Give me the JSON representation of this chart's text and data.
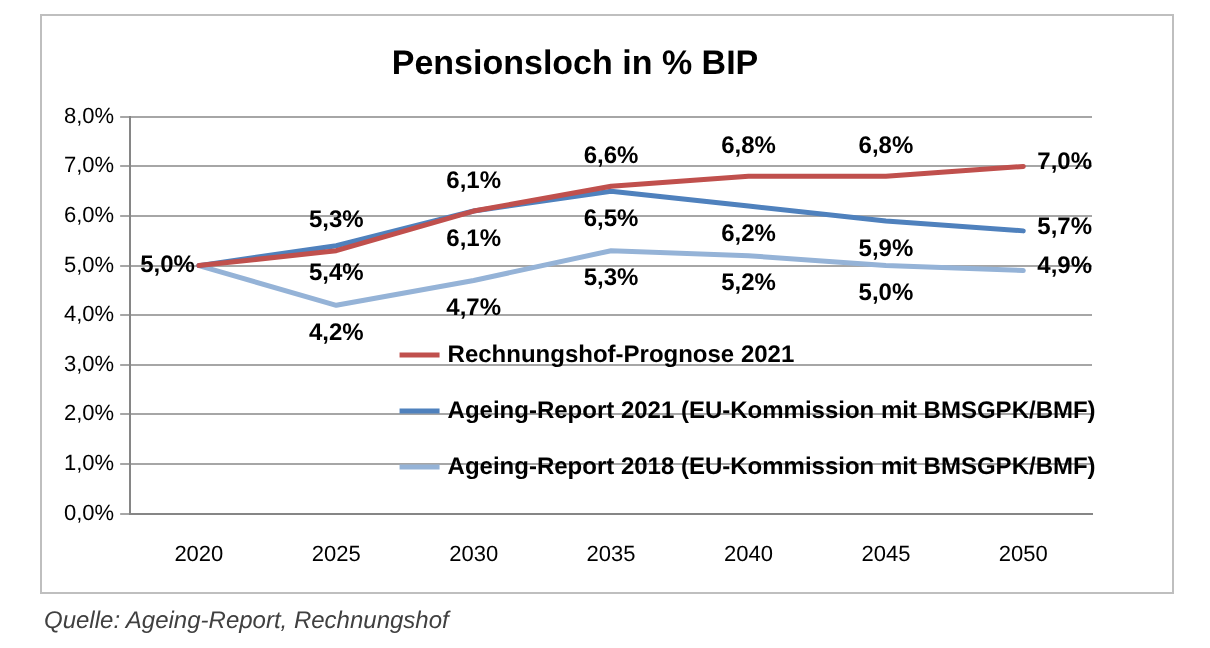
{
  "chart_data": {
    "type": "line",
    "title": "Pensionsloch in % BIP",
    "categories": [
      "2020",
      "2025",
      "2030",
      "2035",
      "2040",
      "2045",
      "2050"
    ],
    "series": [
      {
        "name": "Rechnungshof-Prognose 2021",
        "color": "#c0504d",
        "values": [
          5.0,
          5.3,
          6.1,
          6.6,
          6.8,
          6.8,
          7.0
        ],
        "value_labels": [
          "5,0%",
          "5,3%",
          "6,1%",
          "6,6%",
          "6,8%",
          "6,8%",
          "7,0%"
        ]
      },
      {
        "name": "Ageing-Report 2021 (EU-Kommission mit BMSGPK/BMF)",
        "color": "#4f81bd",
        "values": [
          5.0,
          5.4,
          6.1,
          6.5,
          6.2,
          5.9,
          5.7
        ],
        "value_labels": [
          null,
          "5,4%",
          "6,1%",
          "6,5%",
          "6,2%",
          "5,9%",
          "5,7%"
        ]
      },
      {
        "name": "Ageing-Report 2018 (EU-Kommission mit BMSGPK/BMF)",
        "color": "#95b3d7",
        "values": [
          5.0,
          4.2,
          4.7,
          5.3,
          5.2,
          5.0,
          4.9
        ],
        "value_labels": [
          null,
          "4,2%",
          "4,7%",
          "5,3%",
          "5,2%",
          "5,0%",
          "4,9%"
        ]
      }
    ],
    "ylim": [
      0,
      8
    ],
    "yticks": [
      {
        "value": 0,
        "label": "0,0%"
      },
      {
        "value": 1,
        "label": "1,0%"
      },
      {
        "value": 2,
        "label": "2,0%"
      },
      {
        "value": 3,
        "label": "3,0%"
      },
      {
        "value": 4,
        "label": "4,0%"
      },
      {
        "value": 5,
        "label": "5,0%"
      },
      {
        "value": 6,
        "label": "6,0%"
      },
      {
        "value": 7,
        "label": "7,0%"
      },
      {
        "value": 8,
        "label": "8,0%"
      }
    ],
    "grid": "y",
    "legend": "bottom",
    "marker": "none",
    "line_style": "solid",
    "annotations": [
      "Quelle: Ageing-Report, Rechnungshof"
    ]
  }
}
